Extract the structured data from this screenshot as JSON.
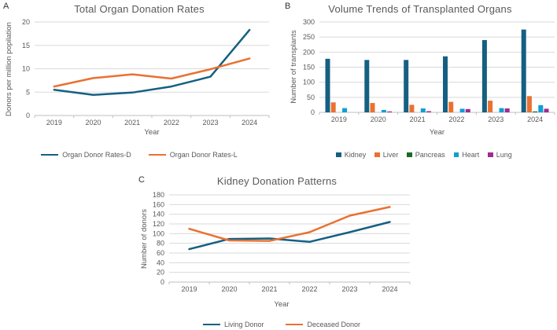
{
  "page": {
    "background": "#ffffff",
    "text_color": "#595959",
    "gridline_color": "#D9D9D9",
    "axis_color": "#BFBFBF"
  },
  "chart_data": [
    {
      "panel_label": "A",
      "type": "line",
      "title": "Total Organ Donation Rates",
      "xlabel": "Year",
      "ylabel": "Donors per million popilation",
      "categories": [
        "2019",
        "2020",
        "2021",
        "2022",
        "2023",
        "2024"
      ],
      "ylim": [
        0,
        20
      ],
      "yticks": [
        0,
        5,
        10,
        15,
        20
      ],
      "grid": true,
      "legend_position": "bottom",
      "series": [
        {
          "name": "Organ Donor Rates-D",
          "color": "#156082",
          "values": [
            5.5,
            4.4,
            4.9,
            6.2,
            8.3,
            18.3
          ]
        },
        {
          "name": "Organ Donor Rates-L",
          "color": "#E97132",
          "values": [
            6.2,
            8.0,
            8.8,
            7.9,
            9.9,
            12.2
          ]
        }
      ]
    },
    {
      "panel_label": "B",
      "type": "bar",
      "title": "Volume Trends of Transplanted Organs",
      "xlabel": "Year",
      "ylabel": "Number of transplants",
      "categories": [
        "2019",
        "2020",
        "2021",
        "2022",
        "2023",
        "2024"
      ],
      "ylim": [
        0,
        300
      ],
      "yticks": [
        0,
        50,
        100,
        150,
        200,
        250,
        300
      ],
      "grid": true,
      "legend_position": "bottom",
      "series": [
        {
          "name": "Kidney",
          "color": "#156082",
          "values": [
            178,
            174,
            174,
            186,
            240,
            275
          ]
        },
        {
          "name": "Liver",
          "color": "#E97132",
          "values": [
            33,
            31,
            25,
            35,
            39,
            54
          ]
        },
        {
          "name": "Pancreas",
          "color": "#196B24",
          "values": [
            0,
            0,
            0,
            0,
            0,
            3
          ]
        },
        {
          "name": "Heart",
          "color": "#0F9ED5",
          "values": [
            14,
            8,
            13,
            12,
            14,
            24
          ]
        },
        {
          "name": "Lung",
          "color": "#A02B93",
          "values": [
            0,
            3,
            4,
            11,
            13,
            12
          ]
        }
      ]
    },
    {
      "panel_label": "C",
      "type": "line",
      "title": "Kidney Donation Patterns",
      "xlabel": "Year",
      "ylabel": "Number of donors",
      "categories": [
        "2019",
        "2020",
        "2021",
        "2022",
        "2023",
        "2024"
      ],
      "ylim": [
        0,
        180
      ],
      "yticks": [
        0,
        20,
        40,
        60,
        80,
        100,
        120,
        140,
        160,
        180
      ],
      "grid": true,
      "legend_position": "bottom",
      "series": [
        {
          "name": "Living Donor",
          "color": "#156082",
          "values": [
            68,
            89,
            90,
            83,
            103,
            124
          ]
        },
        {
          "name": "Deceased Donor",
          "color": "#E97132",
          "values": [
            110,
            86,
            85,
            103,
            137,
            155
          ]
        }
      ]
    }
  ]
}
